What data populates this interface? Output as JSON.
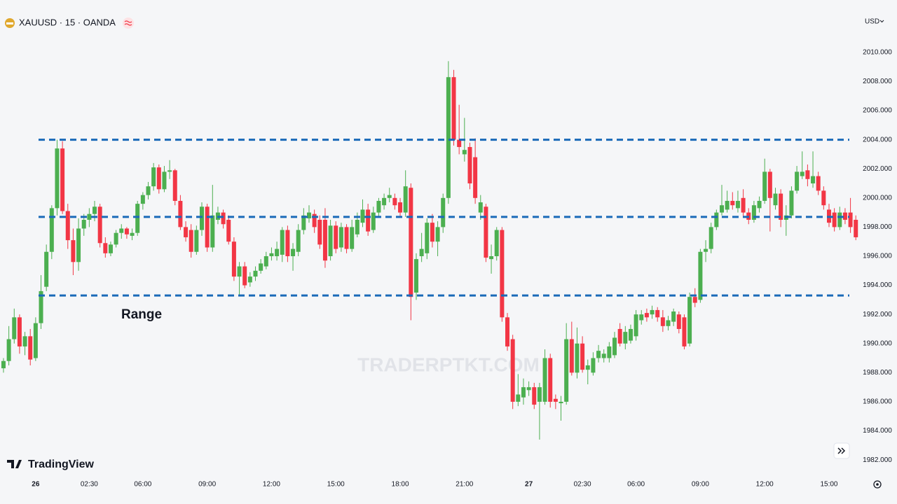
{
  "header": {
    "symbol": "XAUUSD · 15 · OANDA",
    "currency": "USD",
    "brand": "TradingView",
    "watermark": "TRADERPTKT.COM"
  },
  "chart_data": {
    "type": "candlestick",
    "annotation": "Range",
    "up_color": "#4caf50",
    "down_color": "#f23645",
    "level_color": "#1a6ab8",
    "levels": [
      2004.0,
      1998.7,
      1993.3
    ],
    "grid": false,
    "ylim": [
      1980.9,
      2013.6
    ],
    "yticks": [
      {
        "value": 1982,
        "label": "1982.000"
      },
      {
        "value": 1984,
        "label": "1984.000"
      },
      {
        "value": 1986,
        "label": "1986.000"
      },
      {
        "value": 1988,
        "label": "1988.000"
      },
      {
        "value": 1990,
        "label": "1990.000"
      },
      {
        "value": 1992,
        "label": "1992.000"
      },
      {
        "value": 1994,
        "label": "1994.000"
      },
      {
        "value": 1996,
        "label": "1996.000"
      },
      {
        "value": 1998,
        "label": "1998.000"
      },
      {
        "value": 2000,
        "label": "2000.000"
      },
      {
        "value": 2002,
        "label": "2002.000"
      },
      {
        "value": 2004,
        "label": "2004.000"
      },
      {
        "value": 2006,
        "label": "2006.000"
      },
      {
        "value": 2008,
        "label": "2008.000"
      },
      {
        "value": 2010,
        "label": "2010.000"
      }
    ],
    "xlim": [
      -0.65,
      159.1
    ],
    "xticks": [
      {
        "value": 6,
        "label": "26"
      },
      {
        "value": 16,
        "label": "02:30"
      },
      {
        "value": 26,
        "label": "06:00"
      },
      {
        "value": 38,
        "label": "09:00"
      },
      {
        "value": 50,
        "label": "12:00"
      },
      {
        "value": 62,
        "label": "15:00"
      },
      {
        "value": 74,
        "label": "18:00"
      },
      {
        "value": 86,
        "label": "21:00"
      },
      {
        "value": 98,
        "label": "27"
      },
      {
        "value": 108,
        "label": "02:30"
      },
      {
        "value": 118,
        "label": "06:00"
      },
      {
        "value": 130,
        "label": "09:00"
      },
      {
        "value": 142,
        "label": "12:00"
      },
      {
        "value": 154,
        "label": "15:00"
      }
    ],
    "ohlc": [
      [
        1988.3,
        1989.0,
        1988.0,
        1988.8
      ],
      [
        1988.8,
        1991.2,
        1988.5,
        1990.3
      ],
      [
        1990.3,
        1992.4,
        1990.0,
        1991.8
      ],
      [
        1991.8,
        1992.0,
        1989.3,
        1989.8
      ],
      [
        1989.8,
        1990.8,
        1989.2,
        1990.5
      ],
      [
        1990.5,
        1991.0,
        1988.5,
        1988.9
      ],
      [
        1989.0,
        1991.8,
        1988.8,
        1991.4
      ],
      [
        1991.4,
        1994.7,
        1991.0,
        1993.6
      ],
      [
        1993.9,
        1996.8,
        1993.6,
        1996.3
      ],
      [
        1996.3,
        1999.5,
        1995.8,
        1999.3
      ],
      [
        1999.3,
        2004.0,
        1998.8,
        2003.4
      ],
      [
        2003.4,
        2003.9,
        1998.9,
        1999.1
      ],
      [
        1999.1,
        1999.6,
        1996.5,
        1997.1
      ],
      [
        1997.1,
        1997.9,
        1994.7,
        1995.6
      ],
      [
        1995.6,
        1998.6,
        1995.0,
        1997.9
      ],
      [
        1997.9,
        1998.9,
        1997.4,
        1998.5
      ],
      [
        1998.5,
        1999.3,
        1998.0,
        1998.9
      ],
      [
        1998.9,
        1999.8,
        1998.4,
        1999.4
      ],
      [
        1999.4,
        1999.6,
        1996.6,
        1996.9
      ],
      [
        1996.9,
        1997.3,
        1995.9,
        1996.2
      ],
      [
        1996.2,
        1997.0,
        1996.0,
        1996.8
      ],
      [
        1996.8,
        1997.8,
        1996.6,
        1997.6
      ],
      [
        1997.6,
        1998.2,
        1997.2,
        1997.9
      ],
      [
        1997.9,
        1998.0,
        1997.2,
        1997.5
      ],
      [
        1997.4,
        1997.9,
        1997.1,
        1997.6
      ],
      [
        1997.6,
        1999.8,
        1997.4,
        1999.6
      ],
      [
        1999.6,
        2000.4,
        1999.2,
        2000.2
      ],
      [
        2000.2,
        2001.1,
        1999.9,
        2000.8
      ],
      [
        2000.8,
        2002.4,
        2000.5,
        2002.1
      ],
      [
        2002.1,
        2002.3,
        2000.3,
        2000.6
      ],
      [
        2000.6,
        2002.2,
        2000.4,
        2001.8
      ],
      [
        2001.8,
        2002.6,
        2001.3,
        2001.9
      ],
      [
        2001.9,
        2002.0,
        1999.5,
        1999.8
      ],
      [
        1999.8,
        2000.2,
        1997.8,
        1998.0
      ],
      [
        1998.0,
        1998.4,
        1997.0,
        1997.3
      ],
      [
        1997.8,
        1998.2,
        1995.9,
        1996.3
      ],
      [
        1996.3,
        1998.1,
        1996.1,
        1997.8
      ],
      [
        1997.8,
        1999.7,
        1997.4,
        1999.4
      ],
      [
        1999.4,
        1999.6,
        1996.3,
        1996.6
      ],
      [
        1996.6,
        2000.9,
        1996.3,
        1998.8
      ],
      [
        1998.5,
        1999.4,
        1998.2,
        1999.0
      ],
      [
        1999.0,
        1999.2,
        1997.9,
        1998.2
      ],
      [
        1998.5,
        1998.8,
        1996.8,
        1997.0
      ],
      [
        1997.0,
        1997.3,
        1994.3,
        1994.6
      ],
      [
        1994.6,
        1995.6,
        1993.3,
        1995.3
      ],
      [
        1995.3,
        1995.6,
        1993.8,
        1994.0
      ],
      [
        1994.2,
        1994.9,
        1993.9,
        1994.6
      ],
      [
        1994.6,
        1995.3,
        1994.3,
        1995.0
      ],
      [
        1995.0,
        1995.8,
        1994.8,
        1995.5
      ],
      [
        1995.3,
        1996.3,
        1995.1,
        1996.0
      ],
      [
        1996.0,
        1996.6,
        1995.7,
        1996.2
      ],
      [
        1996.0,
        1997.0,
        1995.7,
        1996.5
      ],
      [
        1996.1,
        1998.0,
        1995.6,
        1997.8
      ],
      [
        1997.8,
        1998.1,
        1995.6,
        1996.0
      ],
      [
        1996.0,
        1996.9,
        1995.0,
        1996.5
      ],
      [
        1996.3,
        1998.2,
        1996.0,
        1997.8
      ],
      [
        1997.8,
        1999.3,
        1997.5,
        1998.8
      ],
      [
        1998.6,
        1999.5,
        1998.3,
        1999.0
      ],
      [
        1998.9,
        1999.2,
        1997.6,
        1998.0
      ],
      [
        1998.5,
        1998.8,
        1996.5,
        1996.8
      ],
      [
        1998.5,
        1999.3,
        1995.2,
        1995.7
      ],
      [
        1996.0,
        1998.5,
        1995.7,
        1998.1
      ],
      [
        1998.1,
        1998.4,
        1996.2,
        1996.5
      ],
      [
        1996.6,
        1998.3,
        1996.3,
        1998.0
      ],
      [
        1998.0,
        1998.2,
        1996.2,
        1996.5
      ],
      [
        1996.5,
        1998.5,
        1996.3,
        1998.0
      ],
      [
        1997.5,
        1999.0,
        1997.3,
        1998.5
      ],
      [
        1998.3,
        1999.9,
        1998.0,
        1999.2
      ],
      [
        1999.2,
        1999.6,
        1997.4,
        1997.7
      ],
      [
        1997.8,
        1999.4,
        1997.6,
        1999.0
      ],
      [
        1999.0,
        2000.0,
        1998.7,
        1999.8
      ],
      [
        1999.5,
        2000.3,
        1999.2,
        2000.0
      ],
      [
        2000.0,
        2000.7,
        1999.7,
        2000.2
      ],
      [
        2000.0,
        2000.3,
        1999.2,
        1999.5
      ],
      [
        1999.7,
        2000.0,
        1998.7,
        1999.0
      ],
      [
        1999.0,
        2001.9,
        1998.7,
        2000.8
      ],
      [
        2000.7,
        2001.0,
        1991.6,
        1993.2
      ],
      [
        1993.5,
        1996.2,
        1993.0,
        1995.8
      ],
      [
        1996.0,
        1997.6,
        1995.6,
        1996.5
      ],
      [
        1996.2,
        1998.6,
        1995.8,
        1998.3
      ],
      [
        1998.3,
        1998.9,
        1996.6,
        1997.0
      ],
      [
        1997.0,
        1998.4,
        1996.0,
        1998.0
      ],
      [
        1998.0,
        2000.3,
        1997.6,
        2000.0
      ],
      [
        2000.0,
        2009.4,
        1999.6,
        2008.3
      ],
      [
        2008.3,
        2008.8,
        2003.6,
        2004.0
      ],
      [
        2004.0,
        2006.4,
        2003.0,
        2003.5
      ],
      [
        2003.0,
        2005.5,
        2002.5,
        2003.3
      ],
      [
        2003.5,
        2003.8,
        2000.6,
        2001.0
      ],
      [
        2002.8,
        2004.1,
        1999.6,
        2000.0
      ],
      [
        1999.0,
        2000.2,
        1998.5,
        1999.7
      ],
      [
        1999.4,
        1999.6,
        1995.6,
        1995.9
      ],
      [
        1995.8,
        1996.8,
        1994.8,
        1996.0
      ],
      [
        1996.0,
        1998.0,
        1995.7,
        1997.8
      ],
      [
        1997.8,
        1998.0,
        1991.5,
        1991.8
      ],
      [
        1991.8,
        1992.1,
        1989.5,
        1989.8
      ],
      [
        1990.3,
        1990.6,
        1985.5,
        1986.0
      ],
      [
        1986.0,
        1987.9,
        1985.7,
        1986.5
      ],
      [
        1986.3,
        1987.6,
        1985.8,
        1987.0
      ],
      [
        1986.8,
        1987.4,
        1986.4,
        1987.0
      ],
      [
        1987.0,
        1987.3,
        1985.5,
        1985.8
      ],
      [
        1986.0,
        1987.3,
        1983.4,
        1987.0
      ],
      [
        1986.0,
        1989.6,
        1985.8,
        1989.0
      ],
      [
        1989.0,
        1989.3,
        1985.6,
        1986.0
      ],
      [
        1986.2,
        1986.5,
        1985.5,
        1986.0
      ],
      [
        1985.9,
        1986.4,
        1984.7,
        1986.0
      ],
      [
        1986.0,
        1991.4,
        1985.8,
        1990.3
      ],
      [
        1990.3,
        1991.5,
        1987.8,
        1988.0
      ],
      [
        1988.0,
        1991.1,
        1987.6,
        1990.0
      ],
      [
        1990.0,
        1990.5,
        1988.0,
        1988.2
      ],
      [
        1988.2,
        1988.9,
        1987.2,
        1988.5
      ],
      [
        1988.0,
        1989.4,
        1987.8,
        1989.0
      ],
      [
        1989.0,
        1989.9,
        1988.7,
        1989.5
      ],
      [
        1989.0,
        1989.6,
        1988.7,
        1989.3
      ],
      [
        1989.0,
        1990.1,
        1988.7,
        1989.8
      ],
      [
        1989.2,
        1990.8,
        1989.0,
        1990.4
      ],
      [
        1991.0,
        1991.4,
        1989.8,
        1990.0
      ],
      [
        1990.0,
        1991.2,
        1989.6,
        1990.8
      ],
      [
        1990.2,
        1991.3,
        1990.0,
        1991.0
      ],
      [
        1990.5,
        1992.3,
        1990.2,
        1992.0
      ],
      [
        1991.6,
        1992.3,
        1991.3,
        1992.0
      ],
      [
        1992.1,
        1992.4,
        1991.5,
        1991.8
      ],
      [
        1992.0,
        1992.6,
        1991.7,
        1992.3
      ],
      [
        1992.3,
        1992.5,
        1991.5,
        1991.8
      ],
      [
        1991.8,
        1992.3,
        1990.8,
        1991.2
      ],
      [
        1991.2,
        1991.9,
        1990.9,
        1991.6
      ],
      [
        1991.5,
        1992.4,
        1991.2,
        1992.2
      ],
      [
        1992.0,
        1992.2,
        1990.7,
        1991.0
      ],
      [
        1991.8,
        1992.0,
        1989.6,
        1989.8
      ],
      [
        1990.0,
        1993.5,
        1989.8,
        1993.2
      ],
      [
        1993.2,
        1993.8,
        1992.5,
        1992.8
      ],
      [
        1993.0,
        1996.5,
        1992.8,
        1996.3
      ],
      [
        1996.3,
        1997.1,
        1995.6,
        1996.5
      ],
      [
        1996.5,
        1998.3,
        1996.2,
        1998.0
      ],
      [
        1998.0,
        1999.2,
        1997.8,
        1999.0
      ],
      [
        1999.0,
        2000.9,
        1998.8,
        1999.5
      ],
      [
        1999.2,
        2000.5,
        1999.0,
        1999.8
      ],
      [
        1999.8,
        2000.4,
        1999.2,
        1999.5
      ],
      [
        1999.3,
        2000.5,
        1999.0,
        1999.8
      ],
      [
        2000.0,
        2000.6,
        1998.7,
        1999.0
      ],
      [
        1999.0,
        1999.3,
        1998.2,
        1998.5
      ],
      [
        1998.5,
        1999.8,
        1998.3,
        1999.5
      ],
      [
        1999.3,
        2000.1,
        1999.0,
        1999.8
      ],
      [
        1999.8,
        2002.7,
        1999.6,
        2001.8
      ],
      [
        2001.8,
        2002.0,
        1997.7,
        2000.0
      ],
      [
        1999.5,
        2000.7,
        1999.2,
        2000.3
      ],
      [
        2000.3,
        2000.6,
        1998.0,
        1998.5
      ],
      [
        1998.5,
        1999.5,
        1997.4,
        1998.8
      ],
      [
        1998.8,
        2000.8,
        1998.6,
        2000.5
      ],
      [
        2000.5,
        2002.2,
        2000.3,
        2001.8
      ],
      [
        2001.5,
        2003.2,
        2001.3,
        2001.8
      ],
      [
        2001.9,
        2002.3,
        2000.8,
        2001.3
      ],
      [
        2001.0,
        2003.2,
        2000.7,
        2001.5
      ],
      [
        2001.5,
        2001.8,
        2000.2,
        2000.5
      ],
      [
        2000.5,
        2000.8,
        1999.2,
        1999.5
      ],
      [
        1999.2,
        1999.6,
        1998.0,
        1998.3
      ],
      [
        1999.0,
        1999.3,
        1997.7,
        1998.0
      ],
      [
        1998.0,
        1999.4,
        1997.8,
        1999.0
      ],
      [
        1999.0,
        1999.3,
        1998.2,
        1998.5
      ],
      [
        1999.0,
        2000.0,
        1997.6,
        1998.0
      ],
      [
        1998.5,
        1998.8,
        1997.1,
        1997.3
      ]
    ]
  }
}
